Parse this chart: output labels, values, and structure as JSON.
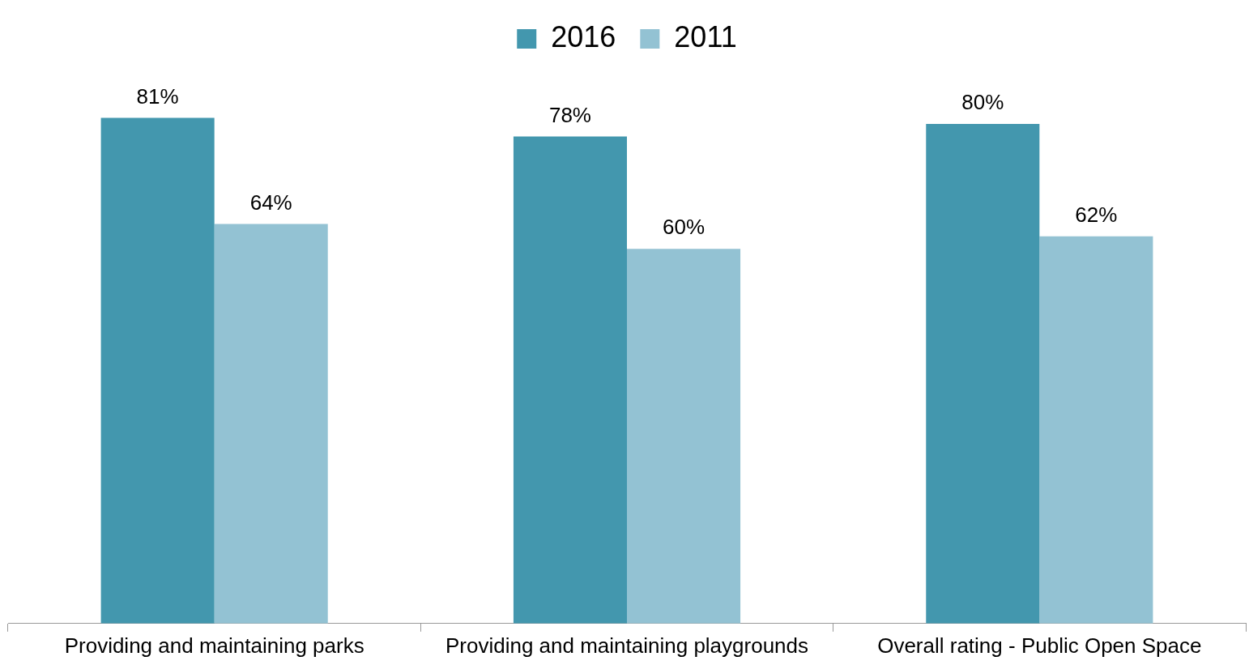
{
  "chart_data": {
    "type": "bar",
    "categories": [
      "Providing and maintaining parks",
      "Providing and maintaining playgrounds",
      "Overall rating - Public Open Space"
    ],
    "series": [
      {
        "name": "2016",
        "color": "#4397ae",
        "values": [
          81,
          78,
          80
        ],
        "value_labels": [
          "81%",
          "78%",
          "80%"
        ]
      },
      {
        "name": "2011",
        "color": "#93c2d3",
        "values": [
          64,
          60,
          62
        ],
        "value_labels": [
          "64%",
          "60%",
          "62%"
        ]
      }
    ],
    "tick_labels": "x",
    "grid": false,
    "legend": "top"
  }
}
